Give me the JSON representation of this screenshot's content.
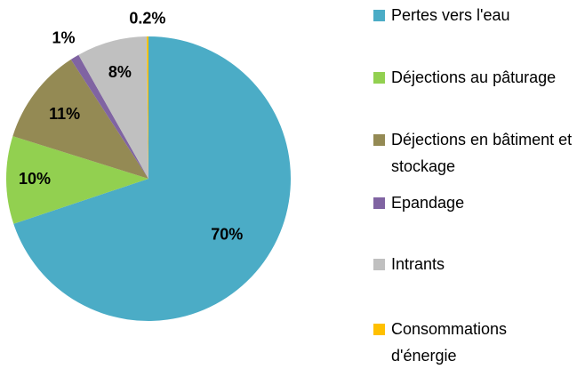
{
  "chart_data": {
    "type": "pie",
    "categories": [
      "Pertes vers l'eau",
      "Déjections au pâturage",
      "Déjections en bâtiment et stockage",
      "Epandage",
      "Intrants",
      "Consommations d'énergie"
    ],
    "values": [
      70,
      10,
      11,
      1,
      8,
      0.2
    ],
    "value_labels": [
      "70%",
      "10%",
      "11%",
      "1%",
      "8%",
      "0.2%"
    ],
    "colors": [
      "#4bacc6",
      "#92d050",
      "#948a54",
      "#8064a2",
      "#c0c0c0",
      "#ffc000"
    ],
    "legend": "right"
  }
}
